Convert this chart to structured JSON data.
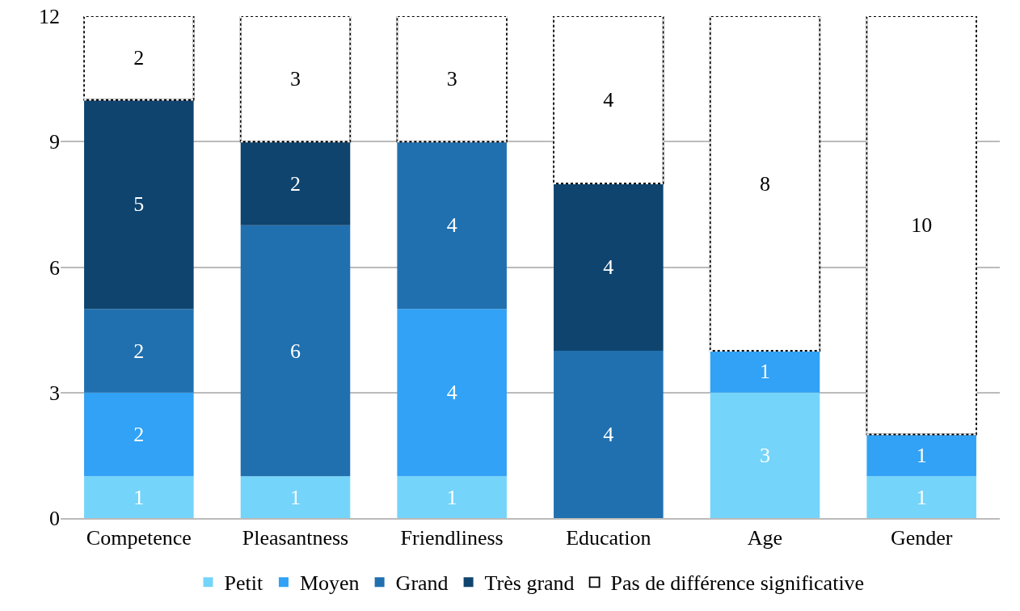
{
  "chart_data": {
    "type": "bar",
    "stacked": true,
    "data_labels": true,
    "grid": "y",
    "legend": "bottom",
    "categories": [
      "Competence",
      "Pleasantness",
      "Friendliness",
      "Education",
      "Age",
      "Gender"
    ],
    "ylim": [
      0,
      12
    ],
    "yticks": [
      0,
      3,
      6,
      9,
      12
    ],
    "series": [
      {
        "name": "Petit",
        "color": "#75d4fa",
        "values": [
          1,
          1,
          1,
          null,
          3,
          1
        ]
      },
      {
        "name": "Moyen",
        "color": "#31a2f5",
        "values": [
          2,
          null,
          4,
          null,
          1,
          1
        ]
      },
      {
        "name": "Grand",
        "color": "#2070b0",
        "values": [
          2,
          6,
          4,
          4,
          null,
          null
        ]
      },
      {
        "name": "Très grand",
        "color": "#0f446e",
        "values": [
          5,
          2,
          null,
          4,
          null,
          null
        ]
      },
      {
        "name": "Pas de différence significative",
        "color": "#ffffff",
        "line_style": "dotted",
        "values": [
          2,
          3,
          3,
          4,
          8,
          10
        ]
      }
    ]
  }
}
